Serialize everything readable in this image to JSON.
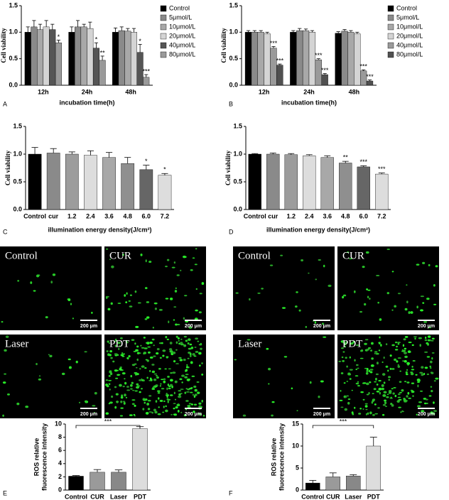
{
  "chart_data": [
    {
      "type": "grouped_bar",
      "panel": "A",
      "ylabel": "Cell viability",
      "xlabel": "incubation time(h)",
      "categories": [
        "12h",
        "24h",
        "48h"
      ],
      "ylim": [
        0,
        1.5
      ],
      "yticks": [
        {
          "value": 0,
          "label": "0.0"
        },
        {
          "value": 0.5,
          "label": "0.5"
        },
        {
          "value": 1,
          "label": "1.0"
        },
        {
          "value": 1.5,
          "label": "1.5"
        }
      ],
      "series": [
        {
          "name": "Control",
          "color": "#000000",
          "values": [
            1.0,
            1.0,
            1.0
          ],
          "errors": [
            0.1,
            0.1,
            0.08
          ],
          "sig_labels": [
            null,
            null,
            null
          ]
        },
        {
          "name": "5μmol/L",
          "color": "#8a8a8a",
          "values": [
            1.1,
            1.1,
            1.03
          ],
          "errors": [
            0.12,
            0.12,
            0.07
          ],
          "sig_labels": [
            null,
            null,
            null
          ]
        },
        {
          "name": "10μmol/L",
          "color": "#a8a8a8",
          "values": [
            1.05,
            1.1,
            1.02
          ],
          "errors": [
            0.1,
            0.05,
            0.05
          ],
          "sig_labels": [
            null,
            null,
            null
          ]
        },
        {
          "name": "20μmol/L",
          "color": "#d4d4d4",
          "values": [
            1.1,
            1.07,
            1.0
          ],
          "errors": [
            0.12,
            0.12,
            0.07
          ],
          "sig_labels": [
            null,
            null,
            null
          ]
        },
        {
          "name": "40μmol/L",
          "color": "#555555",
          "values": [
            1.05,
            0.7,
            0.62
          ],
          "errors": [
            0.1,
            0.1,
            0.15
          ],
          "sig_labels": [
            null,
            "*",
            "*"
          ]
        },
        {
          "name": "80μmol/L",
          "color": "#9a9a9a",
          "values": [
            0.8,
            0.47,
            0.15
          ],
          "errors": [
            0.05,
            0.08,
            0.05
          ],
          "sig_labels": [
            "*",
            "**",
            "***"
          ]
        }
      ]
    },
    {
      "type": "grouped_bar",
      "panel": "B",
      "ylabel": "Cell viability",
      "xlabel": "incubation time(h)",
      "categories": [
        "12h",
        "24h",
        "48h"
      ],
      "ylim": [
        0,
        1.5
      ],
      "yticks": [
        {
          "value": 0,
          "label": "0.0"
        },
        {
          "value": 0.5,
          "label": "0.5"
        },
        {
          "value": 1,
          "label": "1.0"
        },
        {
          "value": 1.5,
          "label": "1.5"
        }
      ],
      "series": [
        {
          "name": "Control",
          "color": "#000000",
          "values": [
            1.0,
            1.0,
            0.98
          ],
          "errors": [
            0.03,
            0.03,
            0.03
          ],
          "sig_labels": [
            null,
            null,
            null
          ]
        },
        {
          "name": "5μmol/L",
          "color": "#8a8a8a",
          "values": [
            1.0,
            1.03,
            1.02
          ],
          "errors": [
            0.03,
            0.04,
            0.03
          ],
          "sig_labels": [
            null,
            null,
            null
          ]
        },
        {
          "name": "10μmol/L",
          "color": "#a8a8a8",
          "values": [
            1.0,
            1.03,
            1.0
          ],
          "errors": [
            0.03,
            0.03,
            0.03
          ],
          "sig_labels": [
            null,
            null,
            null
          ]
        },
        {
          "name": "20μmol/L",
          "color": "#d4d4d4",
          "values": [
            0.97,
            1.0,
            0.97
          ],
          "errors": [
            0.03,
            0.03,
            0.03
          ],
          "sig_labels": [
            null,
            null,
            null
          ]
        },
        {
          "name": "40μmol/L",
          "color": "#9a9a9a",
          "values": [
            0.7,
            0.48,
            0.27
          ],
          "errors": [
            0.03,
            0.02,
            0.02
          ],
          "sig_labels": [
            "***",
            "***",
            "***"
          ]
        },
        {
          "name": "80μmol/L",
          "color": "#505050",
          "values": [
            0.38,
            0.2,
            0.08
          ],
          "errors": [
            0.02,
            0.02,
            0.02
          ],
          "sig_labels": [
            "***",
            "***",
            "***"
          ]
        }
      ]
    },
    {
      "type": "bar",
      "panel": "C",
      "ylabel": "Cell viability",
      "xlabel": "illumination energy density(J/cm²)",
      "categories": [
        "Control",
        "cur",
        "1.2",
        "2.4",
        "3.6",
        "4.8",
        "6.0",
        "7.2"
      ],
      "ylim": [
        0,
        1.5
      ],
      "yticks": [
        {
          "value": 0,
          "label": "0.0"
        },
        {
          "value": 0.5,
          "label": "0.5"
        },
        {
          "value": 1,
          "label": "1.0"
        },
        {
          "value": 1.5,
          "label": "1.5"
        }
      ],
      "values": [
        1.0,
        1.02,
        1.0,
        0.98,
        0.94,
        0.83,
        0.72,
        0.62
      ],
      "errors": [
        0.12,
        0.08,
        0.04,
        0.08,
        0.09,
        0.11,
        0.08,
        0.03
      ],
      "sig_labels": [
        null,
        null,
        null,
        null,
        null,
        null,
        "*",
        "*"
      ],
      "colors": [
        "#000000",
        "#8a8a8a",
        "#9c9c9c",
        "#dddddd",
        "#a8a8a8",
        "#8f8f8f",
        "#666666",
        "#dddddd"
      ]
    },
    {
      "type": "bar",
      "panel": "D",
      "ylabel": "Cell viability",
      "xlabel": "illumination energy density(J/cm²)",
      "categories": [
        "Control",
        "cur",
        "1.2",
        "2.4",
        "3.6",
        "4.8",
        "6.0",
        "7.2"
      ],
      "ylim": [
        0,
        1.5
      ],
      "yticks": [
        {
          "value": 0,
          "label": "0.0"
        },
        {
          "value": 0.5,
          "label": "0.5"
        },
        {
          "value": 1,
          "label": "1.0"
        },
        {
          "value": 1.5,
          "label": "1.5"
        }
      ],
      "values": [
        1.0,
        1.0,
        0.99,
        0.97,
        0.94,
        0.84,
        0.77,
        0.64
      ],
      "errors": [
        0.01,
        0.02,
        0.02,
        0.02,
        0.03,
        0.03,
        0.02,
        0.02
      ],
      "sig_labels": [
        null,
        null,
        null,
        null,
        null,
        "**",
        "***",
        "***"
      ],
      "colors": [
        "#000000",
        "#8a8a8a",
        "#9c9c9c",
        "#dddddd",
        "#a8a8a8",
        "#8f8f8f",
        "#666666",
        "#dddddd"
      ]
    },
    {
      "type": "bar",
      "panel": "E",
      "ylabel": [
        "ROS relative",
        "fluorescence intensity"
      ],
      "annotation": "***",
      "categories": [
        "Control",
        "CUR",
        "Laser",
        "PDT"
      ],
      "ylim": [
        0,
        10
      ],
      "yticks": [
        0,
        2,
        4,
        6,
        8,
        10
      ],
      "values": [
        2.1,
        2.7,
        2.7,
        9.3
      ],
      "errors": [
        0.1,
        0.4,
        0.35,
        0.3
      ],
      "colors": [
        "#000000",
        "#9a9a9a",
        "#888888",
        "#dddddd"
      ]
    },
    {
      "type": "bar",
      "panel": "F",
      "ylabel": [
        "ROS relative",
        "fluorescence intensity"
      ],
      "annotation": "***",
      "categories": [
        "Control",
        "CUR",
        "Laser",
        "PDT"
      ],
      "ylim": [
        0,
        15
      ],
      "yticks": [
        0,
        5,
        10,
        15
      ],
      "values": [
        1.6,
        3.0,
        3.2,
        10.0
      ],
      "errors": [
        0.6,
        0.9,
        0.3,
        2.0
      ],
      "colors": [
        "#000000",
        "#9a9a9a",
        "#888888",
        "#dddddd"
      ]
    }
  ],
  "micrographs": [
    {
      "images": [
        {
          "label": "Control",
          "scale_bar": "200 μm"
        },
        {
          "label": "CUR",
          "scale_bar": "200 μm"
        },
        {
          "label": "Laser",
          "scale_bar": "200 μm"
        },
        {
          "label": "PDT",
          "scale_bar": "200 μm"
        }
      ]
    },
    {
      "images": [
        {
          "label": "Control",
          "scale_bar": "200 μm"
        },
        {
          "label": "CUR",
          "scale_bar": "200 μm"
        },
        {
          "label": "Laser",
          "scale_bar": "200 μm"
        },
        {
          "label": "PDT",
          "scale_bar": "200 μm"
        }
      ]
    }
  ]
}
